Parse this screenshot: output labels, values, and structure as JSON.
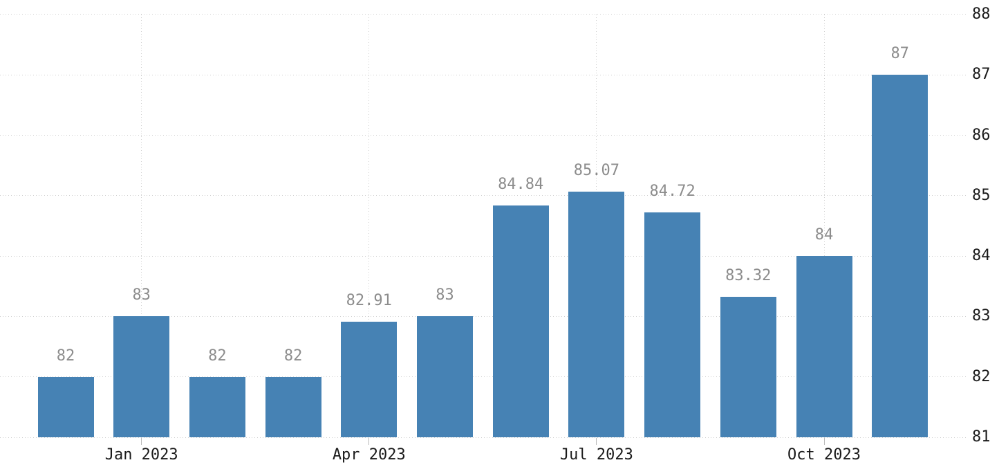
{
  "chart": {
    "background_color": "#ffffff",
    "bar_color": "#4682b4",
    "grid_color": "#cfcfcf",
    "tick_color": "#b8b8b8",
    "axis_label_color": "#1a1a1a",
    "value_label_color": "#8c8c8c"
  },
  "chart_data": {
    "type": "bar",
    "title": "",
    "xlabel": "",
    "ylabel": "",
    "values": [
      82,
      83,
      82,
      82,
      82.91,
      83,
      84.84,
      85.07,
      84.72,
      83.32,
      84,
      87
    ],
    "bar_value_labels": [
      "82",
      "83",
      "82",
      "82",
      "82.91",
      "83",
      "84.84",
      "85.07",
      "84.72",
      "83.32",
      "84",
      "87"
    ],
    "x_ticks": [
      {
        "label": "Jan 2023",
        "bar_index": 1
      },
      {
        "label": "Apr 2023",
        "bar_index": 4
      },
      {
        "label": "Jul 2023",
        "bar_index": 7
      },
      {
        "label": "Oct 2023",
        "bar_index": 10
      }
    ],
    "y_ticks": [
      88,
      87,
      86,
      85,
      84,
      83,
      82,
      81
    ],
    "ylim": [
      81,
      88
    ],
    "y_axis_side": "right",
    "grid": "dotted horizontal lines at each y tick; dotted vertical lines at labeled month bars",
    "legend": null
  }
}
